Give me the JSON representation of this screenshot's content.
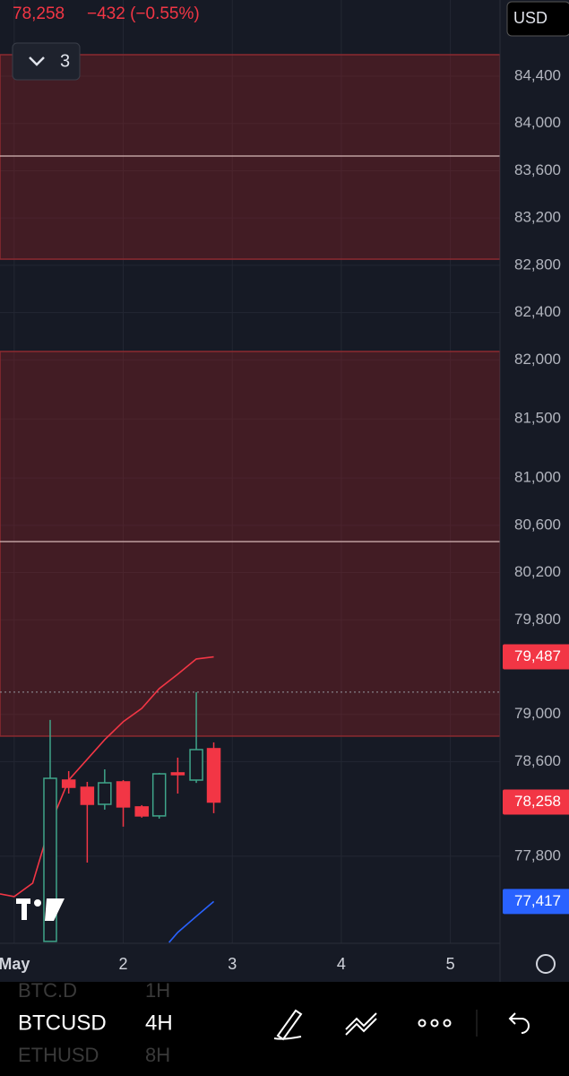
{
  "header": {
    "price": "78,258",
    "change": "−432 (−0.55%)",
    "currency": "USD",
    "indicator_count": "3"
  },
  "chart_data": {
    "type": "candlestick",
    "x": [
      1.33,
      1.5,
      1.67,
      1.83,
      2,
      2.17,
      2.33,
      2.5,
      2.67,
      2.83
    ],
    "open": [
      77079,
      78444,
      78383,
      78239,
      78429,
      78217,
      78141,
      78505,
      78444,
      78710
    ],
    "high": [
      78953,
      78520,
      78429,
      78535,
      78444,
      78232,
      78505,
      78634,
      79188,
      78763
    ],
    "low": [
      77079,
      78330,
      77746,
      78194,
      78050,
      78126,
      78118,
      78330,
      78420,
      78164
    ],
    "close": [
      78459,
      78383,
      78239,
      78421,
      78217,
      78141,
      78497,
      78490,
      78702,
      78258
    ],
    "up_color": "#3fa58a",
    "down_color": "#f23645",
    "series": [
      {
        "color": "#f23645",
        "x": [
          0.87,
          1,
          1.17,
          1.33,
          1.5,
          1.83,
          2,
          2.17,
          2.33,
          2.5,
          2.67,
          2.83
        ],
        "values": [
          77481,
          77458,
          77572,
          78065,
          78444,
          78786,
          78938,
          79051,
          79218,
          79340,
          79469,
          79487
        ]
      },
      {
        "color": "#2962ff",
        "x": [
          2.42,
          2.5,
          2.67,
          2.83
        ],
        "values": [
          77070,
          77155,
          77291,
          77417
        ]
      }
    ],
    "zones": [
      {
        "from": 82852,
        "to": 84582
      },
      {
        "from": 78816,
        "to": 82071
      }
    ],
    "levels": [
      83725,
      80462
    ],
    "dotted_level": 79188,
    "price_tags": [
      {
        "value": 79487,
        "label": "79,487",
        "color": "#f23645"
      },
      {
        "value": 78258,
        "label": "78,258",
        "color": "#f23645"
      },
      {
        "value": 77417,
        "label": "77,417",
        "color": "#2962ff"
      }
    ],
    "xlim": [
      0.87,
      5.455
    ],
    "xticks": [
      {
        "value": 1,
        "label": "May"
      },
      2,
      3,
      4,
      5
    ],
    "ylim": [
      77063,
      85045
    ],
    "yticks": [
      {
        "value": 84400,
        "label": "84,400"
      },
      {
        "value": 84000,
        "label": "84,000"
      },
      {
        "value": 83600,
        "label": "83,600"
      },
      {
        "value": 83200,
        "label": "83,200"
      },
      {
        "value": 82800,
        "label": "82,800"
      },
      {
        "value": 82400,
        "label": "82,400"
      },
      {
        "value": 82000,
        "label": "82,000"
      },
      {
        "value": 81500,
        "label": "81,500"
      },
      {
        "value": 81000,
        "label": "81,000"
      },
      {
        "value": 80600,
        "label": "80,600"
      },
      {
        "value": 80200,
        "label": "80,200"
      },
      {
        "value": 79800,
        "label": "79,800"
      },
      {
        "value": 79000,
        "label": "79,000"
      },
      {
        "value": 78600,
        "label": "78,600"
      },
      {
        "value": 77800,
        "label": "77,800"
      }
    ],
    "grid": true
  },
  "toolbar": {
    "symbols": [
      {
        "name": "BTC.D",
        "interval": "1H"
      },
      {
        "name": "BTCUSD",
        "interval": "4H"
      },
      {
        "name": "ETHUSD",
        "interval": "8H"
      }
    ]
  }
}
